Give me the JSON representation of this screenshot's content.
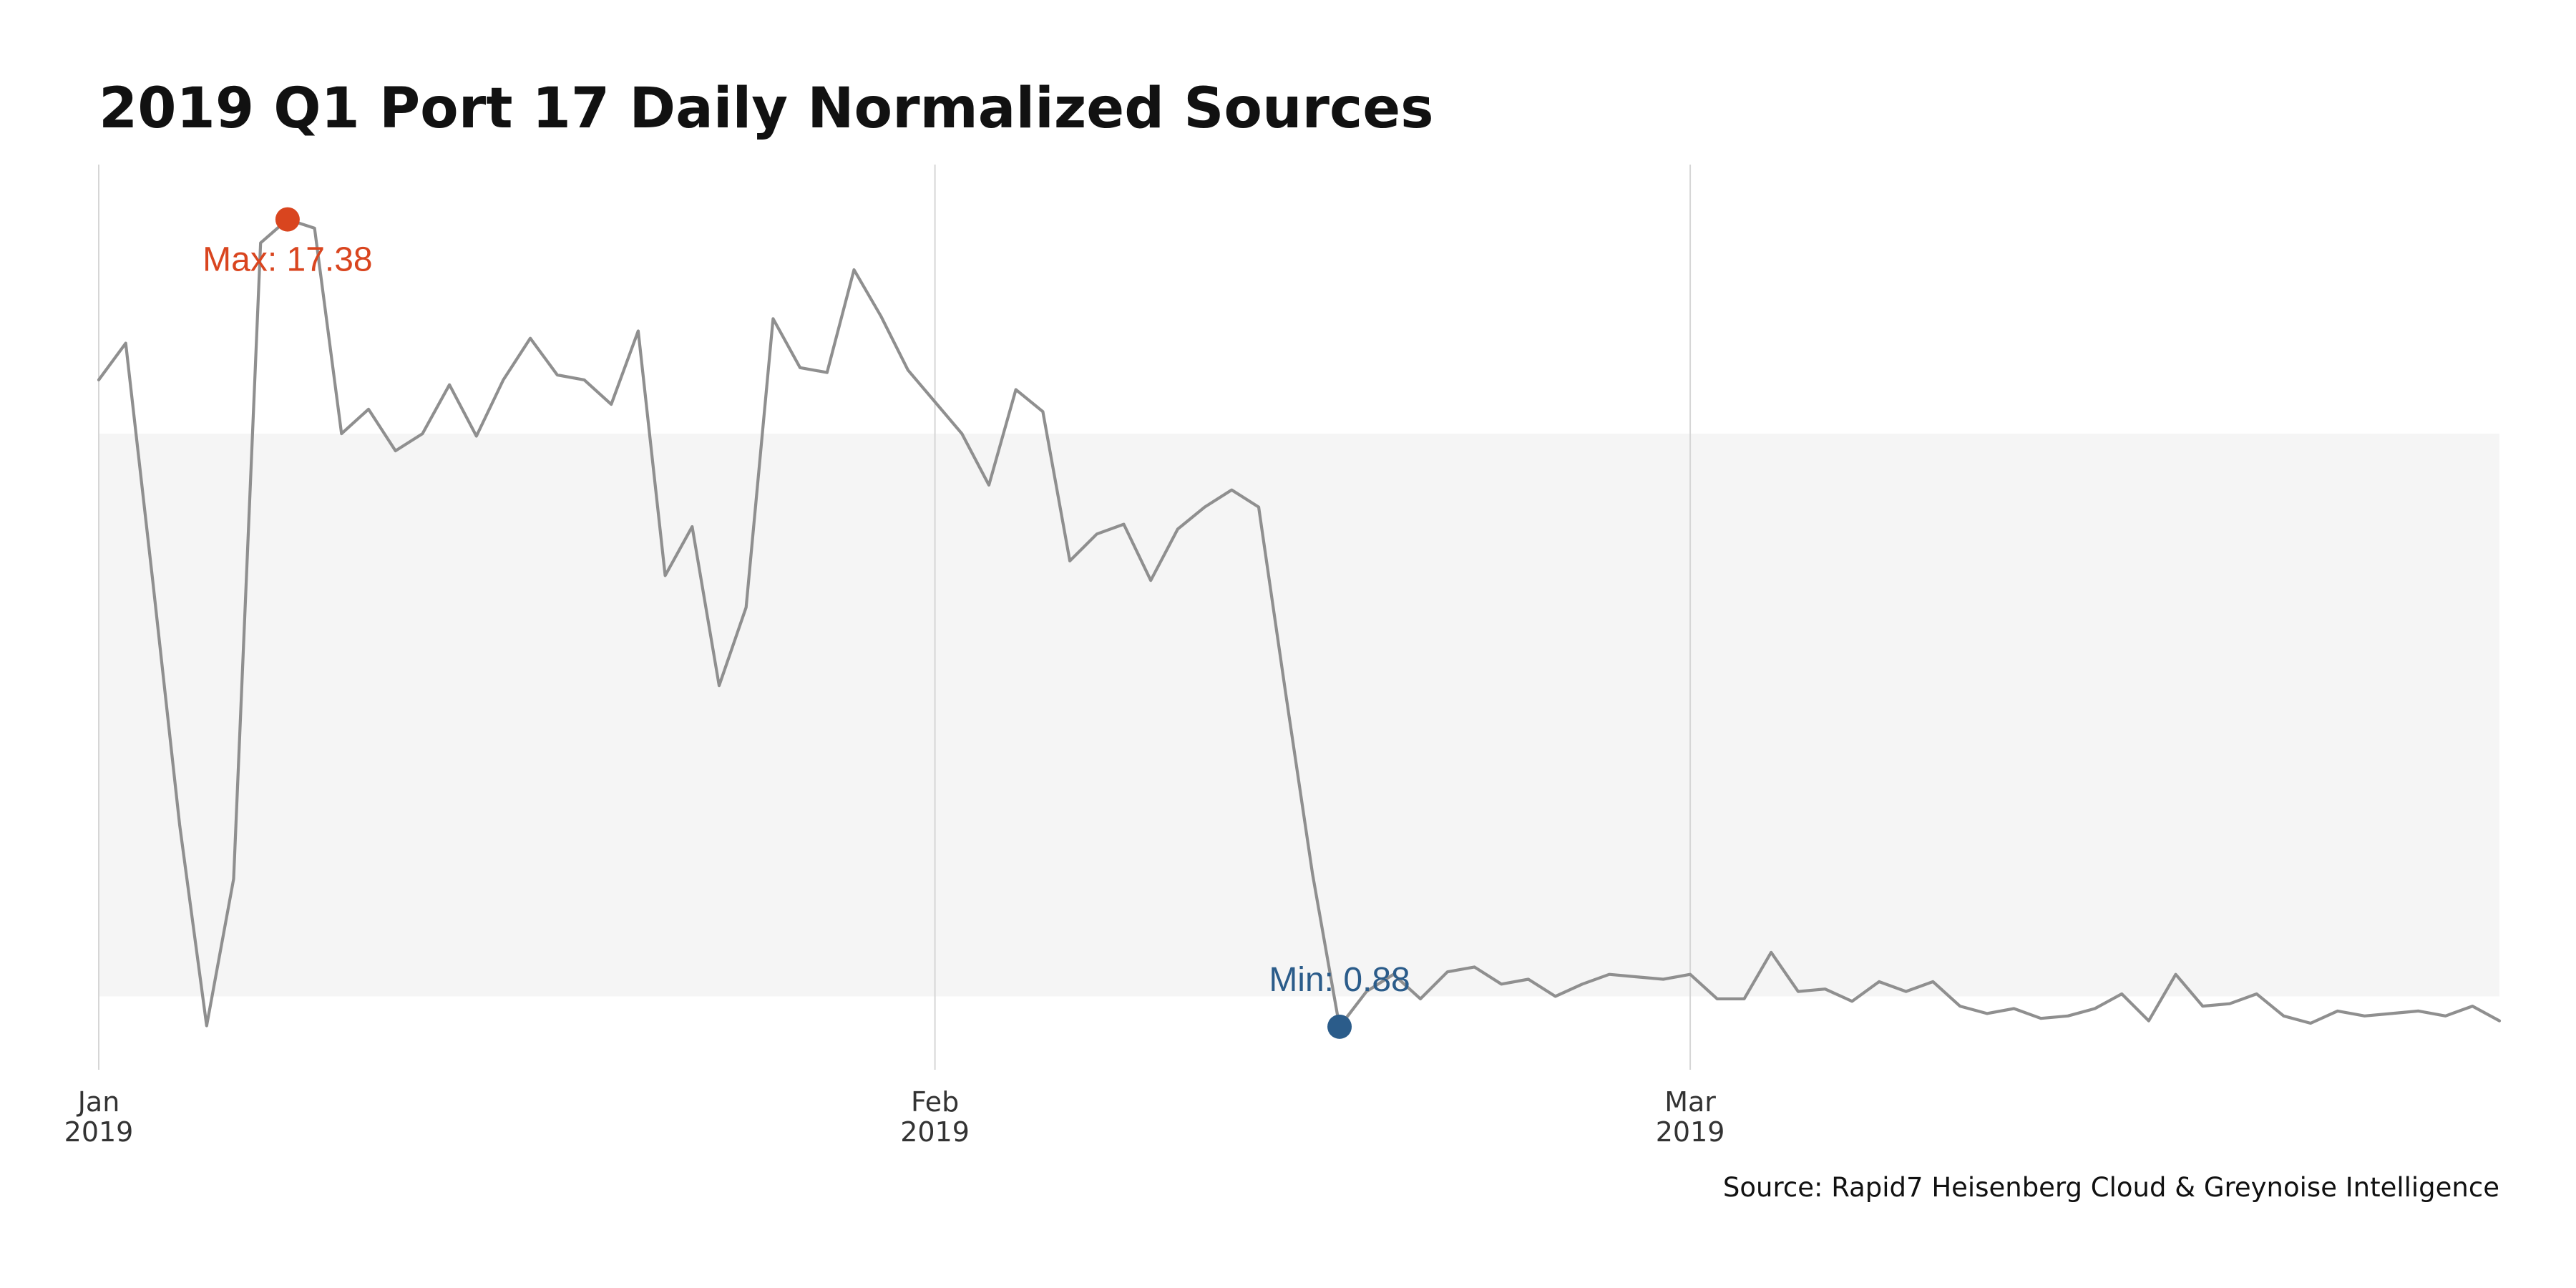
{
  "chart_data": {
    "type": "line",
    "title": "2019 Q1 Port 17 Daily Normalized Sources",
    "caption": "Source: Rapid7 Heisenberg Cloud & Greynoise Intelligence",
    "xlabel": "",
    "ylabel": "",
    "x_start": "2019-01-01",
    "x_end": "2019-03-31",
    "ylim": [
      0,
      18.5
    ],
    "grid": "vertical month lines",
    "x_ticks": [
      {
        "date": "2019-01-01",
        "month": "Jan",
        "year": "2019"
      },
      {
        "date": "2019-02-01",
        "month": "Feb",
        "year": "2019"
      },
      {
        "date": "2019-03-01",
        "month": "Mar",
        "year": "2019"
      }
    ],
    "band": {
      "y_low": 1.5,
      "y_high": 13.0
    },
    "series": [
      {
        "dates": [
          "2019-01-01",
          "2019-01-02",
          "2019-01-03",
          "2019-01-04",
          "2019-01-05",
          "2019-01-06",
          "2019-01-07",
          "2019-01-08",
          "2019-01-09",
          "2019-01-10",
          "2019-01-11",
          "2019-01-12",
          "2019-01-13",
          "2019-01-14",
          "2019-01-15",
          "2019-01-16",
          "2019-01-17",
          "2019-01-18",
          "2019-01-19",
          "2019-01-20",
          "2019-01-21",
          "2019-01-22",
          "2019-01-23",
          "2019-01-24",
          "2019-01-25",
          "2019-01-26",
          "2019-01-27",
          "2019-01-28",
          "2019-01-29",
          "2019-01-30",
          "2019-01-31",
          "2019-02-01",
          "2019-02-02",
          "2019-02-03",
          "2019-02-04",
          "2019-02-05",
          "2019-02-06",
          "2019-02-07",
          "2019-02-08",
          "2019-02-09",
          "2019-02-10",
          "2019-02-11",
          "2019-02-12",
          "2019-02-13",
          "2019-02-14",
          "2019-02-15",
          "2019-02-16",
          "2019-02-17",
          "2019-02-18",
          "2019-02-19",
          "2019-02-20",
          "2019-02-21",
          "2019-02-22",
          "2019-02-23",
          "2019-02-24",
          "2019-02-25",
          "2019-02-26",
          "2019-02-27",
          "2019-02-28",
          "2019-03-01",
          "2019-03-02",
          "2019-03-03",
          "2019-03-04",
          "2019-03-05",
          "2019-03-06",
          "2019-03-07",
          "2019-03-08",
          "2019-03-09",
          "2019-03-10",
          "2019-03-11",
          "2019-03-12",
          "2019-03-13",
          "2019-03-14",
          "2019-03-15",
          "2019-03-16",
          "2019-03-17",
          "2019-03-18",
          "2019-03-19",
          "2019-03-20",
          "2019-03-21",
          "2019-03-22",
          "2019-03-23",
          "2019-03-24",
          "2019-03-25",
          "2019-03-26",
          "2019-03-27",
          "2019-03-28",
          "2019-03-29",
          "2019-03-30",
          "2019-03-31"
        ],
        "values": [
          14.1,
          14.85,
          10.0,
          5.0,
          0.9,
          3.9,
          16.9,
          17.38,
          17.2,
          13.0,
          13.5,
          12.65,
          13.0,
          14.0,
          12.95,
          14.1,
          14.95,
          14.2,
          14.1,
          13.6,
          15.1,
          10.1,
          11.1,
          7.85,
          9.45,
          15.35,
          14.35,
          14.25,
          16.35,
          15.4,
          14.3,
          13.65,
          13.0,
          11.95,
          13.9,
          13.45,
          10.4,
          10.95,
          11.15,
          10.0,
          11.05,
          11.5,
          11.85,
          11.5,
          7.7,
          4.0,
          0.88,
          1.6,
          1.95,
          1.45,
          2.0,
          2.1,
          1.75,
          1.85,
          1.5,
          1.75,
          1.95,
          1.9,
          1.85,
          1.95,
          1.45,
          1.45,
          2.4,
          1.6,
          1.65,
          1.4,
          1.8,
          1.6,
          1.8,
          1.3,
          1.15,
          1.25,
          1.05,
          1.1,
          1.25,
          1.55,
          1.0,
          1.95,
          1.3,
          1.35,
          1.55,
          1.1,
          0.95,
          1.2,
          1.1,
          1.15,
          1.2,
          1.1,
          1.3,
          1.0
        ]
      }
    ],
    "annotations": {
      "max": {
        "date": "2019-01-08",
        "value": 17.38,
        "label": "Max: 17.38",
        "color": "#d9451f"
      },
      "min": {
        "date": "2019-02-16",
        "value": 0.88,
        "label": "Min: 0.88",
        "color": "#2b5c8a"
      }
    },
    "colors": {
      "line": "#8f8f8f",
      "band": "#f5f5f5",
      "grid": "#d6d6d6"
    }
  }
}
